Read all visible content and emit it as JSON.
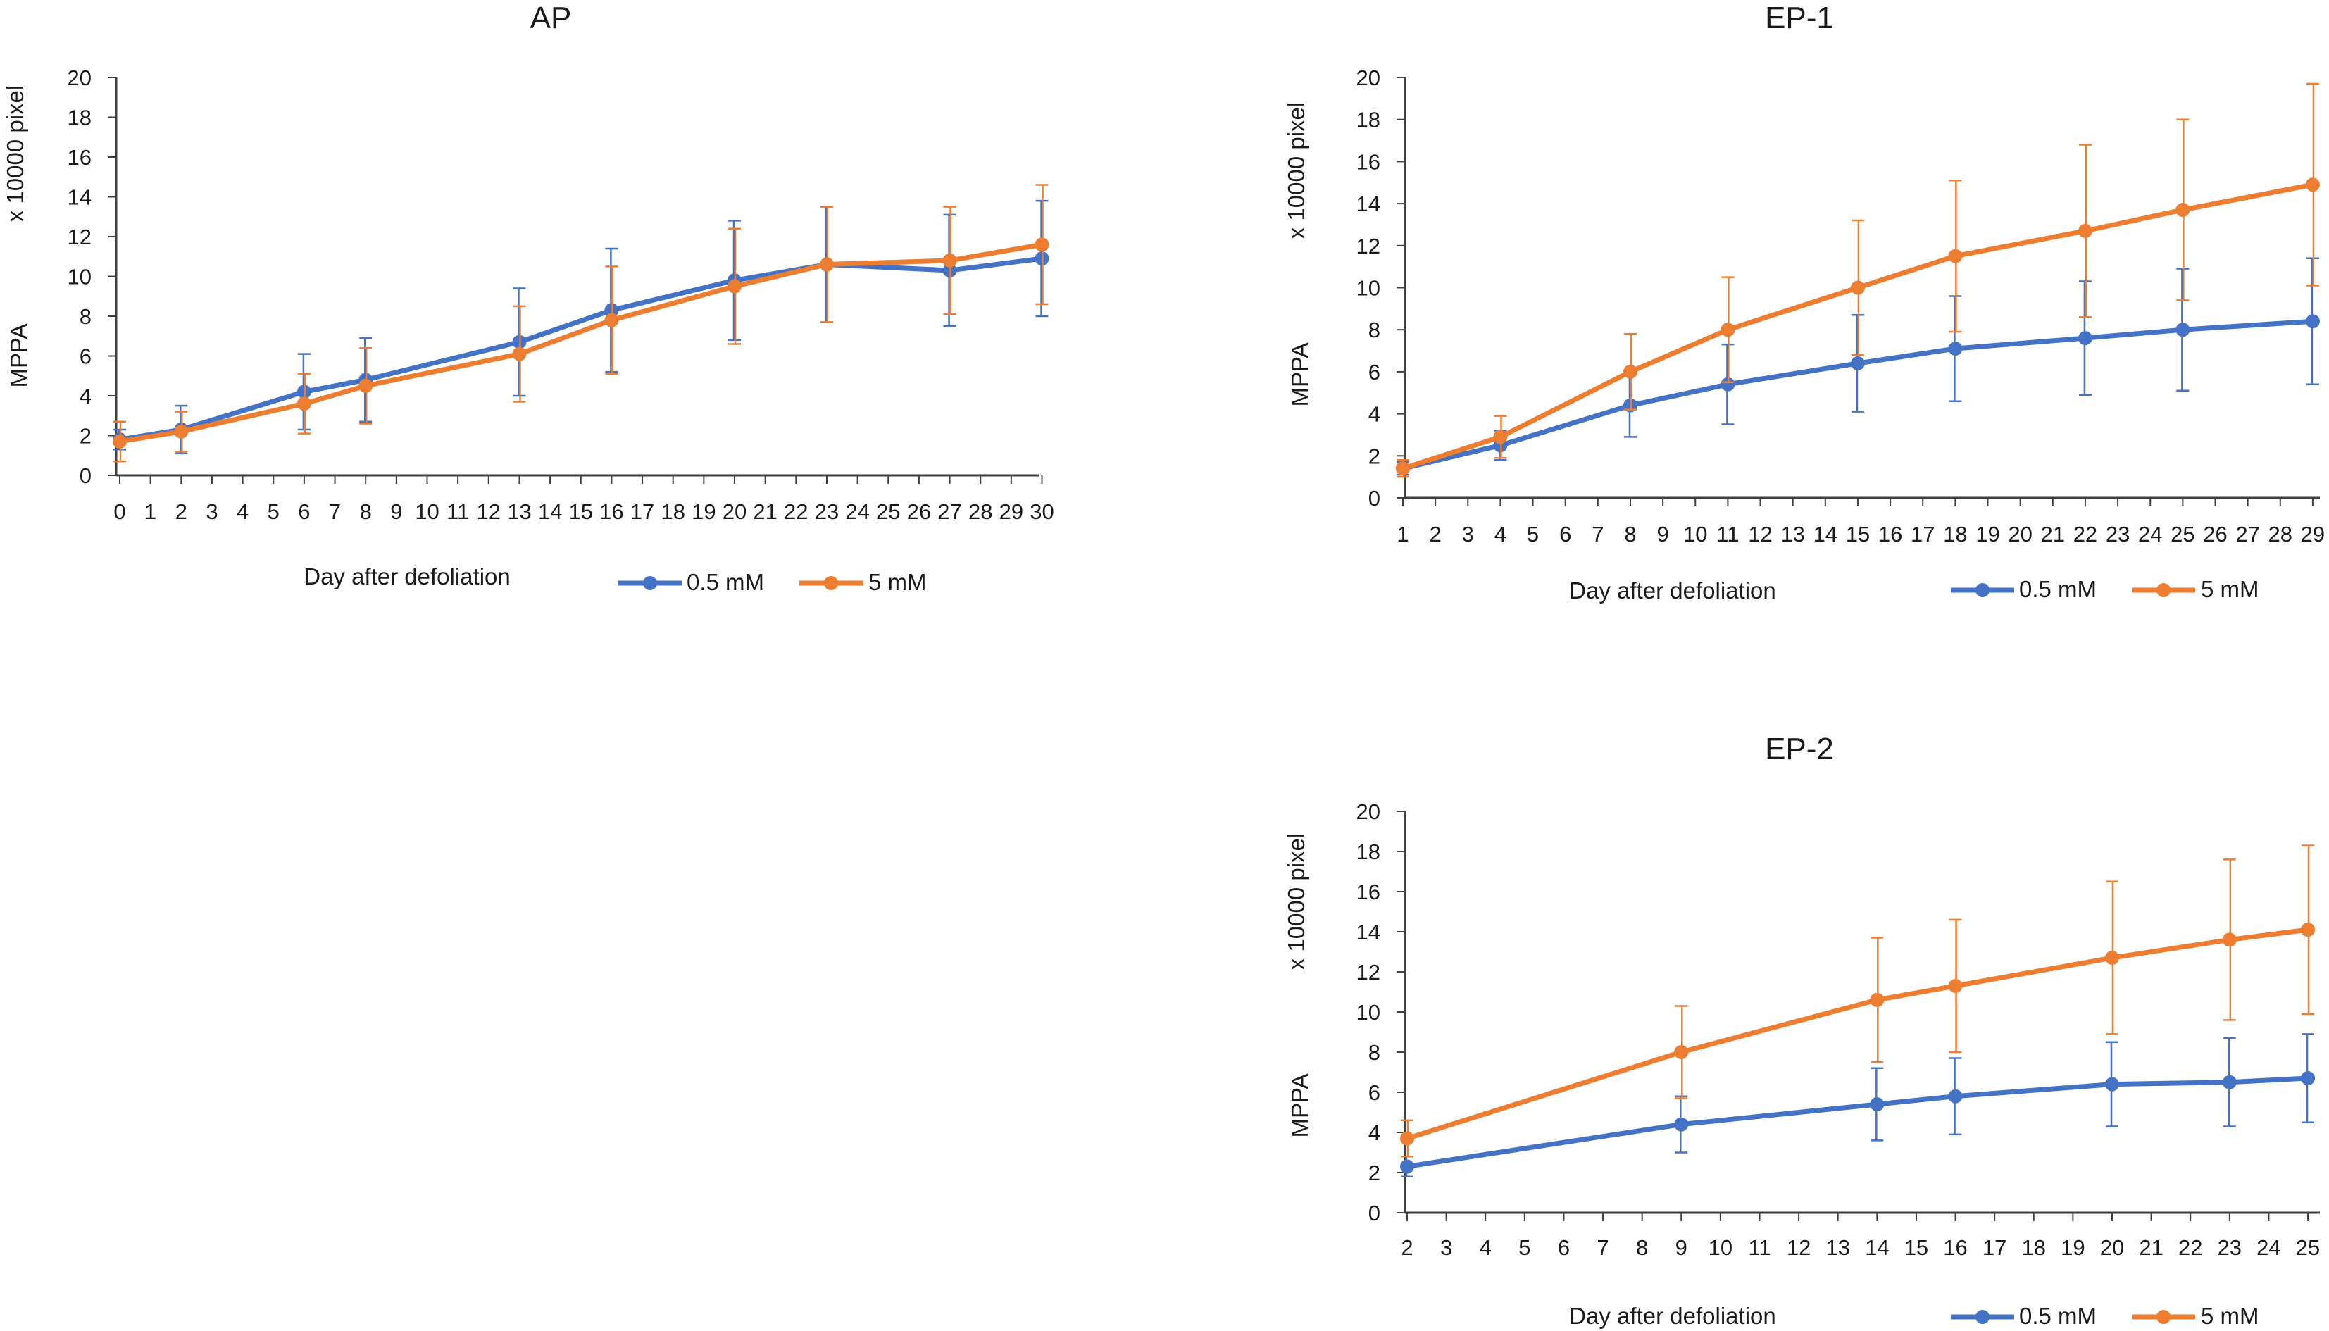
{
  "colors": {
    "series_a": "#4472C4",
    "series_b": "#ED7D31",
    "axis": "#404040"
  },
  "chart_data": [
    {
      "id": "ap",
      "type": "line",
      "title": "AP",
      "xlabel": "Day after defoliation",
      "ylabel": "MPPA",
      "ylabel2": "x 10000 pixel",
      "categories": [
        "0",
        "1",
        "2",
        "3",
        "4",
        "5",
        "6",
        "7",
        "8",
        "9",
        "10",
        "11",
        "12",
        "13",
        "14",
        "15",
        "16",
        "17",
        "18",
        "19",
        "20",
        "21",
        "22",
        "23",
        "24",
        "25",
        "26",
        "27",
        "28",
        "29",
        "30"
      ],
      "ylim": [
        0,
        20
      ],
      "yticks": [
        "0",
        "2",
        "4",
        "6",
        "8",
        "10",
        "12",
        "14",
        "16",
        "18",
        "20"
      ],
      "legend_position": "bottom",
      "series": [
        {
          "name": "0.5 mM",
          "color": "#4472C4",
          "x": [
            0,
            2,
            6,
            8,
            13,
            16,
            20,
            23,
            27,
            30
          ],
          "values": [
            1.8,
            2.3,
            4.2,
            4.8,
            6.7,
            8.3,
            9.8,
            10.6,
            10.3,
            10.9
          ],
          "errors": [
            0.5,
            1.2,
            1.9,
            2.1,
            2.7,
            3.1,
            3.0,
            2.9,
            2.8,
            2.9
          ]
        },
        {
          "name": "5 mM",
          "color": "#ED7D31",
          "x": [
            0,
            2,
            6,
            8,
            13,
            16,
            20,
            23,
            27,
            30
          ],
          "values": [
            1.7,
            2.2,
            3.6,
            4.5,
            6.1,
            7.8,
            9.5,
            10.6,
            10.8,
            11.6
          ],
          "errors": [
            1.0,
            1.0,
            1.5,
            1.9,
            2.4,
            2.7,
            2.9,
            2.9,
            2.7,
            3.0
          ]
        }
      ]
    },
    {
      "id": "ep1",
      "type": "line",
      "title": "EP-1",
      "xlabel": "Day after defoliation",
      "ylabel": "MPPA",
      "ylabel2": "x 10000 pixel",
      "categories": [
        "1",
        "2",
        "3",
        "4",
        "5",
        "6",
        "7",
        "8",
        "9",
        "10",
        "11",
        "12",
        "13",
        "14",
        "15",
        "16",
        "17",
        "18",
        "19",
        "20",
        "21",
        "22",
        "23",
        "24",
        "25",
        "26",
        "27",
        "28",
        "29"
      ],
      "ylim": [
        0,
        20
      ],
      "yticks": [
        "0",
        "2",
        "4",
        "6",
        "8",
        "10",
        "12",
        "14",
        "16",
        "18",
        "20"
      ],
      "legend_position": "bottom",
      "series": [
        {
          "name": "0.5 mM",
          "color": "#4472C4",
          "x": [
            1,
            4,
            8,
            11,
            15,
            18,
            22,
            25,
            29
          ],
          "values": [
            1.4,
            2.5,
            4.4,
            5.4,
            6.4,
            7.1,
            7.6,
            8.0,
            8.4
          ],
          "errors": [
            0.3,
            0.7,
            1.5,
            1.9,
            2.3,
            2.5,
            2.7,
            2.9,
            3.0
          ]
        },
        {
          "name": "5 mM",
          "color": "#ED7D31",
          "x": [
            1,
            4,
            8,
            11,
            15,
            18,
            22,
            25,
            29
          ],
          "values": [
            1.4,
            2.9,
            6.0,
            8.0,
            10.0,
            11.5,
            12.7,
            13.7,
            14.9
          ],
          "errors": [
            0.4,
            1.0,
            1.8,
            2.5,
            3.2,
            3.6,
            4.1,
            4.3,
            4.8
          ]
        }
      ]
    },
    {
      "id": "ep2",
      "type": "line",
      "title": "EP-2",
      "xlabel": "Day after defoliation",
      "ylabel": "MPPA",
      "ylabel2": "x 10000 pixel",
      "categories": [
        "2",
        "3",
        "4",
        "5",
        "6",
        "7",
        "8",
        "9",
        "10",
        "11",
        "12",
        "13",
        "14",
        "15",
        "16",
        "17",
        "18",
        "19",
        "20",
        "21",
        "22",
        "23",
        "24",
        "25"
      ],
      "ylim": [
        0,
        20
      ],
      "yticks": [
        "0",
        "2",
        "4",
        "6",
        "8",
        "10",
        "12",
        "14",
        "16",
        "18",
        "20"
      ],
      "legend_position": "bottom",
      "series": [
        {
          "name": "0.5 mM",
          "color": "#4472C4",
          "x": [
            2,
            9,
            14,
            16,
            20,
            23,
            25
          ],
          "values": [
            2.3,
            4.4,
            5.4,
            5.8,
            6.4,
            6.5,
            6.7
          ],
          "errors": [
            0.5,
            1.4,
            1.8,
            1.9,
            2.1,
            2.2,
            2.2
          ]
        },
        {
          "name": "5 mM",
          "color": "#ED7D31",
          "x": [
            2,
            9,
            14,
            16,
            20,
            23,
            25
          ],
          "values": [
            3.7,
            8.0,
            10.6,
            11.3,
            12.7,
            13.6,
            14.1
          ],
          "errors": [
            0.9,
            2.3,
            3.1,
            3.3,
            3.8,
            4.0,
            4.2
          ]
        }
      ]
    }
  ]
}
